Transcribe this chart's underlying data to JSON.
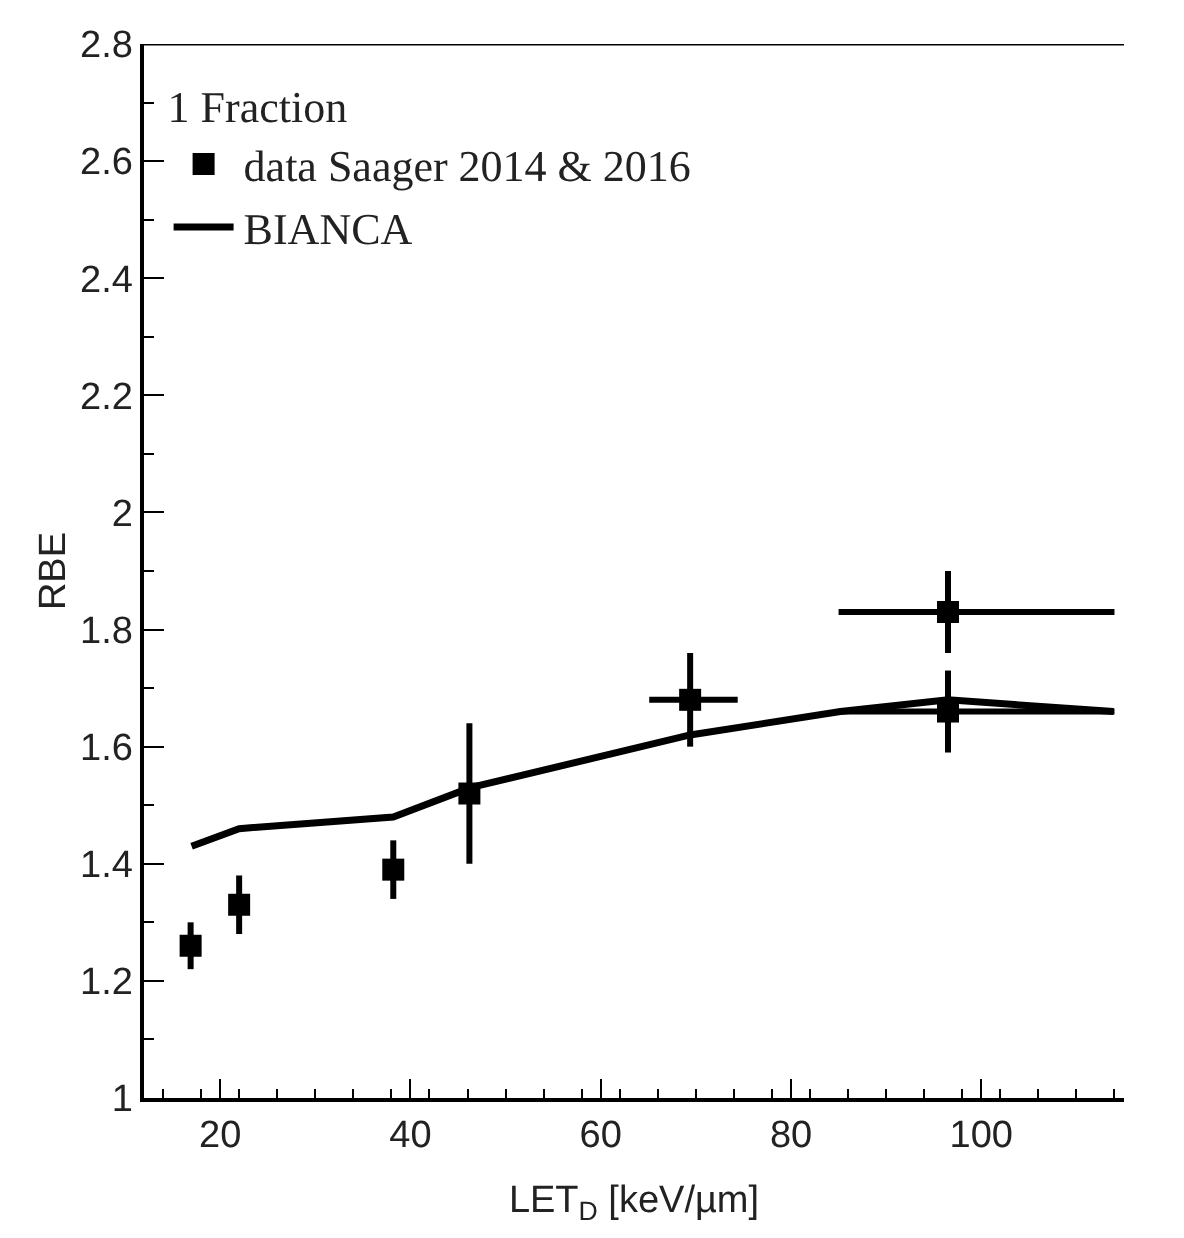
{
  "chart_data": {
    "type": "scatter",
    "xlabel": "LET$_{D}$ [keV/µm]",
    "ylabel": "RBE",
    "legend_title": "1 Fraction",
    "xlim": [
      12,
      115
    ],
    "ylim": [
      1,
      2.8
    ],
    "xticks": [
      20,
      40,
      60,
      80,
      100
    ],
    "yticks": [
      1,
      1.2,
      1.4,
      1.6,
      1.8,
      2,
      2.2,
      2.4,
      2.6,
      2.8
    ],
    "legend": "top left",
    "marker": "square",
    "series": [
      {
        "name": "data Saager 2014 & 2016",
        "color": "#000000",
        "x": [
          16.9,
          22.0,
          38.2,
          46.2,
          69.4,
          96.5,
          96.5
        ],
        "values": [
          1.26,
          1.33,
          1.39,
          1.52,
          1.68,
          1.83,
          1.66
        ],
        "errors": [
          0.04,
          0.05,
          0.05,
          0.12,
          0.08,
          0.07,
          0.07
        ],
        "xerrors": [
          null,
          null,
          null,
          null,
          [
            65.1,
            74.4
          ],
          [
            85,
            114
          ],
          [
            85,
            114
          ]
        ]
      },
      {
        "name": "BIANCA",
        "type": "line",
        "color": "#000000",
        "marker": "none",
        "x": [
          17.0,
          22.0,
          38.2,
          46.3,
          69.4,
          85.2,
          96.5,
          113.9
        ],
        "values": [
          1.43,
          1.46,
          1.48,
          1.53,
          1.62,
          1.66,
          1.68,
          1.66
        ]
      }
    ]
  }
}
